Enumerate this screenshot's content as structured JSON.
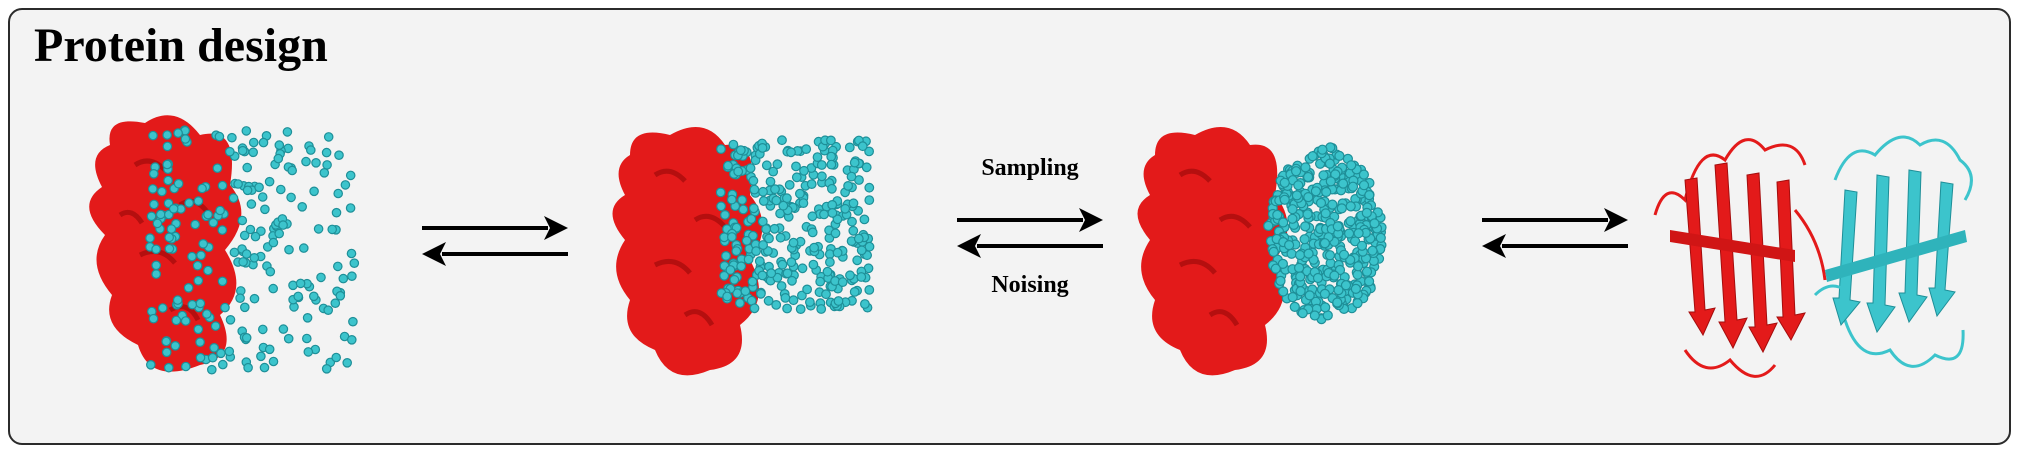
{
  "title": "Protein design",
  "arrow_labels": {
    "forward": "Sampling",
    "reverse": "Noising"
  },
  "colors": {
    "receptor": "#e31a1a",
    "receptor_shade": "#b50f0f",
    "binder": "#3cc4cc",
    "binder_shade": "#1e8f98",
    "arrow": "#000000",
    "panel_bg": "#f3f3f3"
  },
  "stages": [
    {
      "name": "noisy-atoms"
    },
    {
      "name": "partially-denoised"
    },
    {
      "name": "denoised-atoms"
    },
    {
      "name": "cartoon-structure"
    }
  ]
}
